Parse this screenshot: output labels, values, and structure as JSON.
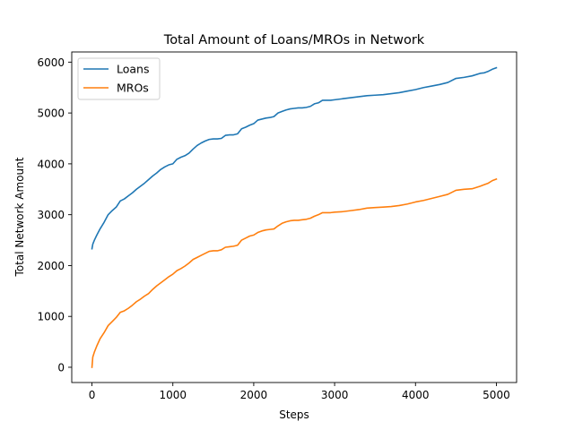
{
  "chart_data": {
    "type": "line",
    "title": "Total Amount of Loans/MROs in Network",
    "xlabel": "Steps",
    "ylabel": "Total Network Amount",
    "xlim": [
      -250,
      5250
    ],
    "ylim": [
      -300,
      6200
    ],
    "xticks": [
      0,
      1000,
      2000,
      3000,
      4000,
      5000
    ],
    "yticks": [
      0,
      1000,
      2000,
      3000,
      4000,
      5000,
      6000
    ],
    "grid": false,
    "legend_position": "upper-left",
    "series": [
      {
        "name": "Loans",
        "color": "#1f77b4",
        "x": [
          0,
          10,
          30,
          60,
          100,
          150,
          200,
          250,
          300,
          350,
          400,
          450,
          500,
          550,
          600,
          650,
          700,
          750,
          800,
          850,
          900,
          950,
          1000,
          1050,
          1100,
          1150,
          1200,
          1250,
          1300,
          1350,
          1400,
          1450,
          1500,
          1550,
          1600,
          1650,
          1700,
          1750,
          1800,
          1850,
          1900,
          1950,
          2000,
          2050,
          2100,
          2150,
          2200,
          2250,
          2300,
          2350,
          2400,
          2450,
          2500,
          2550,
          2600,
          2650,
          2700,
          2750,
          2800,
          2850,
          2900,
          2950,
          3000,
          3100,
          3200,
          3300,
          3400,
          3500,
          3600,
          3700,
          3800,
          3900,
          4000,
          4100,
          4200,
          4300,
          4400,
          4500,
          4600,
          4700,
          4800,
          4850,
          4900,
          4950,
          5000
        ],
        "y": [
          2330,
          2420,
          2500,
          2600,
          2720,
          2850,
          3000,
          3080,
          3150,
          3270,
          3310,
          3370,
          3430,
          3500,
          3560,
          3620,
          3690,
          3760,
          3820,
          3890,
          3940,
          3980,
          4000,
          4090,
          4130,
          4160,
          4210,
          4290,
          4360,
          4410,
          4450,
          4480,
          4490,
          4490,
          4500,
          4560,
          4570,
          4570,
          4590,
          4690,
          4720,
          4760,
          4790,
          4860,
          4880,
          4900,
          4910,
          4930,
          5000,
          5030,
          5060,
          5080,
          5090,
          5100,
          5100,
          5110,
          5130,
          5180,
          5200,
          5250,
          5250,
          5250,
          5260,
          5280,
          5300,
          5320,
          5340,
          5350,
          5360,
          5380,
          5400,
          5430,
          5460,
          5500,
          5530,
          5560,
          5600,
          5680,
          5700,
          5730,
          5780,
          5790,
          5820,
          5860,
          5890
        ]
      },
      {
        "name": "MROs",
        "color": "#ff7f0e",
        "x": [
          0,
          10,
          30,
          60,
          100,
          150,
          200,
          250,
          300,
          350,
          400,
          450,
          500,
          550,
          600,
          650,
          700,
          750,
          800,
          850,
          900,
          950,
          1000,
          1050,
          1100,
          1150,
          1200,
          1250,
          1300,
          1350,
          1400,
          1450,
          1500,
          1550,
          1600,
          1650,
          1700,
          1750,
          1800,
          1850,
          1900,
          1950,
          2000,
          2050,
          2100,
          2150,
          2200,
          2250,
          2300,
          2350,
          2400,
          2450,
          2500,
          2550,
          2600,
          2650,
          2700,
          2750,
          2800,
          2850,
          2900,
          2950,
          3000,
          3100,
          3200,
          3300,
          3400,
          3500,
          3600,
          3700,
          3800,
          3900,
          4000,
          4100,
          4200,
          4300,
          4400,
          4500,
          4600,
          4700,
          4800,
          4850,
          4900,
          4950,
          5000
        ],
        "y": [
          0,
          200,
          300,
          420,
          560,
          680,
          820,
          900,
          980,
          1080,
          1110,
          1160,
          1220,
          1290,
          1340,
          1400,
          1450,
          1530,
          1600,
          1660,
          1720,
          1780,
          1830,
          1900,
          1940,
          1990,
          2050,
          2120,
          2160,
          2200,
          2240,
          2280,
          2290,
          2290,
          2310,
          2360,
          2370,
          2380,
          2400,
          2500,
          2540,
          2580,
          2600,
          2650,
          2680,
          2700,
          2710,
          2720,
          2780,
          2830,
          2860,
          2880,
          2890,
          2890,
          2900,
          2910,
          2930,
          2970,
          3000,
          3040,
          3040,
          3040,
          3050,
          3060,
          3080,
          3100,
          3130,
          3140,
          3150,
          3160,
          3180,
          3210,
          3250,
          3280,
          3320,
          3360,
          3400,
          3480,
          3500,
          3510,
          3560,
          3590,
          3620,
          3670,
          3700
        ]
      }
    ]
  }
}
